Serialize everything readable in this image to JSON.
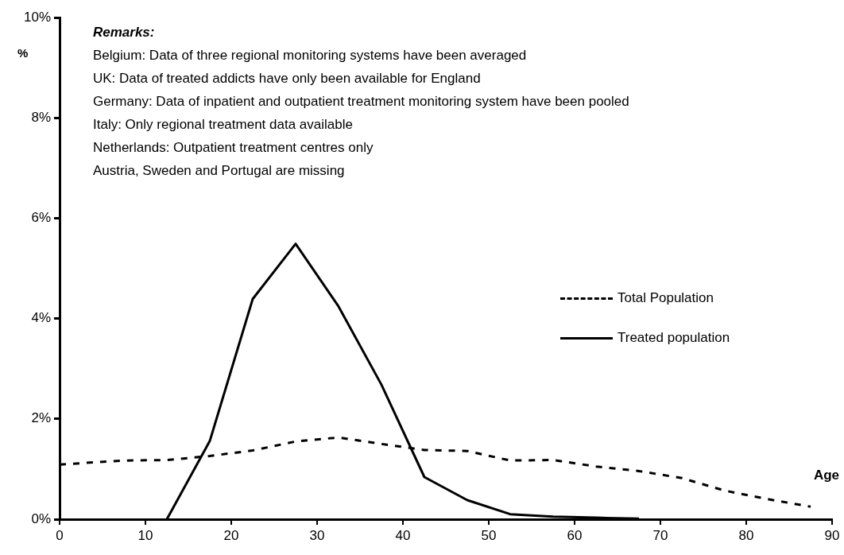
{
  "chart_data": {
    "type": "line",
    "xlabel": "Age",
    "ylabel": "%",
    "xlim": [
      0,
      90
    ],
    "xticks": [
      0,
      10,
      20,
      30,
      40,
      50,
      60,
      70,
      80,
      90
    ],
    "ylim": [
      0,
      10
    ],
    "yticks": [
      {
        "value": 0,
        "label": "0%"
      },
      {
        "value": 2,
        "label": "2%"
      },
      {
        "value": 4,
        "label": "4%"
      },
      {
        "value": 6,
        "label": "6%"
      },
      {
        "value": 8,
        "label": "8%"
      },
      {
        "value": 10,
        "label": "10%"
      }
    ],
    "grid": false,
    "legend": "right",
    "marker": "none",
    "series": [
      {
        "name": "Total Population",
        "color": "#000000",
        "line_style": "dashed",
        "x": [
          0,
          7.5,
          12.5,
          17.5,
          22.5,
          27.5,
          32.5,
          37.5,
          42.5,
          47.5,
          52.5,
          57.5,
          62.5,
          67.5,
          72.5,
          77.5,
          82.5,
          87.5
        ],
        "values": [
          1.09,
          1.17,
          1.18,
          1.26,
          1.37,
          1.55,
          1.63,
          1.5,
          1.38,
          1.36,
          1.17,
          1.18,
          1.05,
          0.96,
          0.82,
          0.57,
          0.4,
          0.25
        ]
      },
      {
        "name": "Treated population",
        "color": "#000000",
        "line_style": "solid",
        "x": [
          12.5,
          17.5,
          22.5,
          27.5,
          32.5,
          37.5,
          42.5,
          47.5,
          52.5,
          57.5,
          62.5,
          67.5
        ],
        "values": [
          0,
          1.56,
          4.39,
          5.49,
          4.24,
          2.68,
          0.84,
          0.38,
          0.1,
          0.05,
          0.03,
          0.01
        ]
      }
    ],
    "annotations": [
      "Remarks:",
      "Belgium: Data of three regional monitoring systems have been averaged",
      "UK: Data of treated addicts have only been available for England",
      "Germany: Data of inpatient and outpatient treatment monitoring system have been pooled",
      "Italy: Only regional treatment data available",
      "Netherlands: Outpatient treatment centres only",
      "Austria, Sweden and Portugal are missing"
    ]
  }
}
